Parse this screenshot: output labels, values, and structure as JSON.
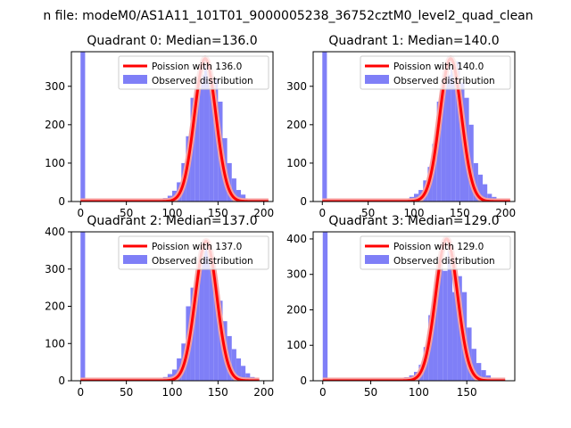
{
  "suptitle": "n file: modeM0/AS1A11_101T01_9000005238_36752cztM0_level2_quad_clean",
  "colors": {
    "hist": "#7f7ff7",
    "fit": "#ff0000",
    "fit_highlight": "#f4a0a0",
    "axis": "#000000",
    "legend_border": "#cccccc"
  },
  "chart_data": [
    {
      "type": "bar",
      "title": "Quadrant 0: Median=136.0",
      "median": 136.0,
      "xlim": [
        -10,
        210
      ],
      "ylim": [
        0,
        390
      ],
      "xticks": [
        0,
        50,
        100,
        150,
        200
      ],
      "yticks": [
        0,
        100,
        200,
        300
      ],
      "legend": {
        "fit_label": "Poission with 136.0",
        "hist_label": "Observed distribution",
        "position": "top-right"
      },
      "bins": {
        "x": [
          0,
          70,
          75,
          80,
          85,
          90,
          95,
          100,
          105,
          110,
          115,
          120,
          125,
          130,
          135,
          140,
          145,
          150,
          155,
          160,
          165,
          170,
          175,
          180,
          185,
          190,
          195
        ],
        "width": 5,
        "values": [
          390,
          1,
          2,
          5,
          7,
          9,
          15,
          28,
          50,
          100,
          170,
          270,
          305,
          330,
          365,
          310,
          320,
          260,
          165,
          100,
          60,
          30,
          18,
          8,
          4,
          2,
          1
        ]
      },
      "fit": {
        "peak": 372,
        "sigma": 11.7,
        "x_range": [
          0,
          205
        ]
      }
    },
    {
      "type": "bar",
      "title": "Quadrant 1: Median=140.0",
      "median": 140.0,
      "xlim": [
        -10,
        210
      ],
      "ylim": [
        0,
        390
      ],
      "xticks": [
        0,
        50,
        100,
        150,
        200
      ],
      "yticks": [
        0,
        100,
        200,
        300
      ],
      "legend": {
        "fit_label": "Poission with 140.0",
        "hist_label": "Observed distribution",
        "position": "top-right"
      },
      "bins": {
        "x": [
          0,
          70,
          75,
          80,
          85,
          90,
          95,
          100,
          105,
          110,
          115,
          120,
          125,
          130,
          135,
          140,
          145,
          150,
          155,
          160,
          165,
          170,
          175,
          180,
          185,
          190,
          195,
          200
        ],
        "width": 5,
        "values": [
          390,
          1,
          2,
          3,
          5,
          8,
          12,
          20,
          30,
          55,
          90,
          150,
          260,
          300,
          330,
          355,
          365,
          310,
          270,
          200,
          100,
          70,
          45,
          20,
          12,
          6,
          3,
          1
        ]
      },
      "fit": {
        "peak": 372,
        "sigma": 11.8,
        "x_range": [
          0,
          205
        ]
      }
    },
    {
      "type": "bar",
      "title": "Quadrant 2: Median=137.0",
      "median": 137.0,
      "xlim": [
        -10,
        210
      ],
      "ylim": [
        0,
        400
      ],
      "xticks": [
        0,
        50,
        100,
        150,
        200
      ],
      "yticks": [
        0,
        100,
        200,
        300,
        400
      ],
      "legend": {
        "fit_label": "Poission with 137.0",
        "hist_label": "Observed distribution",
        "position": "top-right"
      },
      "bins": {
        "x": [
          0,
          70,
          75,
          80,
          85,
          90,
          95,
          100,
          105,
          110,
          115,
          120,
          125,
          130,
          135,
          140,
          145,
          150,
          155,
          160,
          165,
          170,
          175,
          180,
          185,
          190,
          195
        ],
        "width": 5,
        "values": [
          400,
          2,
          3,
          6,
          8,
          10,
          18,
          30,
          60,
          100,
          200,
          250,
          270,
          325,
          365,
          320,
          270,
          215,
          160,
          120,
          85,
          60,
          40,
          20,
          10,
          4,
          1
        ]
      },
      "fit": {
        "peak": 375,
        "sigma": 11.7,
        "x_range": [
          0,
          195
        ]
      }
    },
    {
      "type": "bar",
      "title": "Quadrant 3: Median=129.0",
      "median": 129.0,
      "xlim": [
        -10,
        200
      ],
      "ylim": [
        0,
        420
      ],
      "xticks": [
        0,
        50,
        100,
        150
      ],
      "yticks": [
        0,
        100,
        200,
        300,
        400
      ],
      "legend": {
        "fit_label": "Poission with 129.0",
        "hist_label": "Observed distribution",
        "position": "top-right"
      },
      "bins": {
        "x": [
          0,
          75,
          80,
          85,
          90,
          95,
          100,
          105,
          110,
          115,
          120,
          125,
          130,
          135,
          140,
          145,
          150,
          155,
          160,
          165,
          170,
          175,
          180,
          185
        ],
        "width": 5,
        "values": [
          420,
          2,
          5,
          10,
          15,
          25,
          45,
          95,
          185,
          240,
          350,
          310,
          375,
          250,
          295,
          250,
          150,
          90,
          50,
          30,
          15,
          8,
          3,
          1
        ]
      },
      "fit": {
        "peak": 400,
        "sigma": 11.4,
        "x_range": [
          0,
          190
        ]
      }
    }
  ]
}
